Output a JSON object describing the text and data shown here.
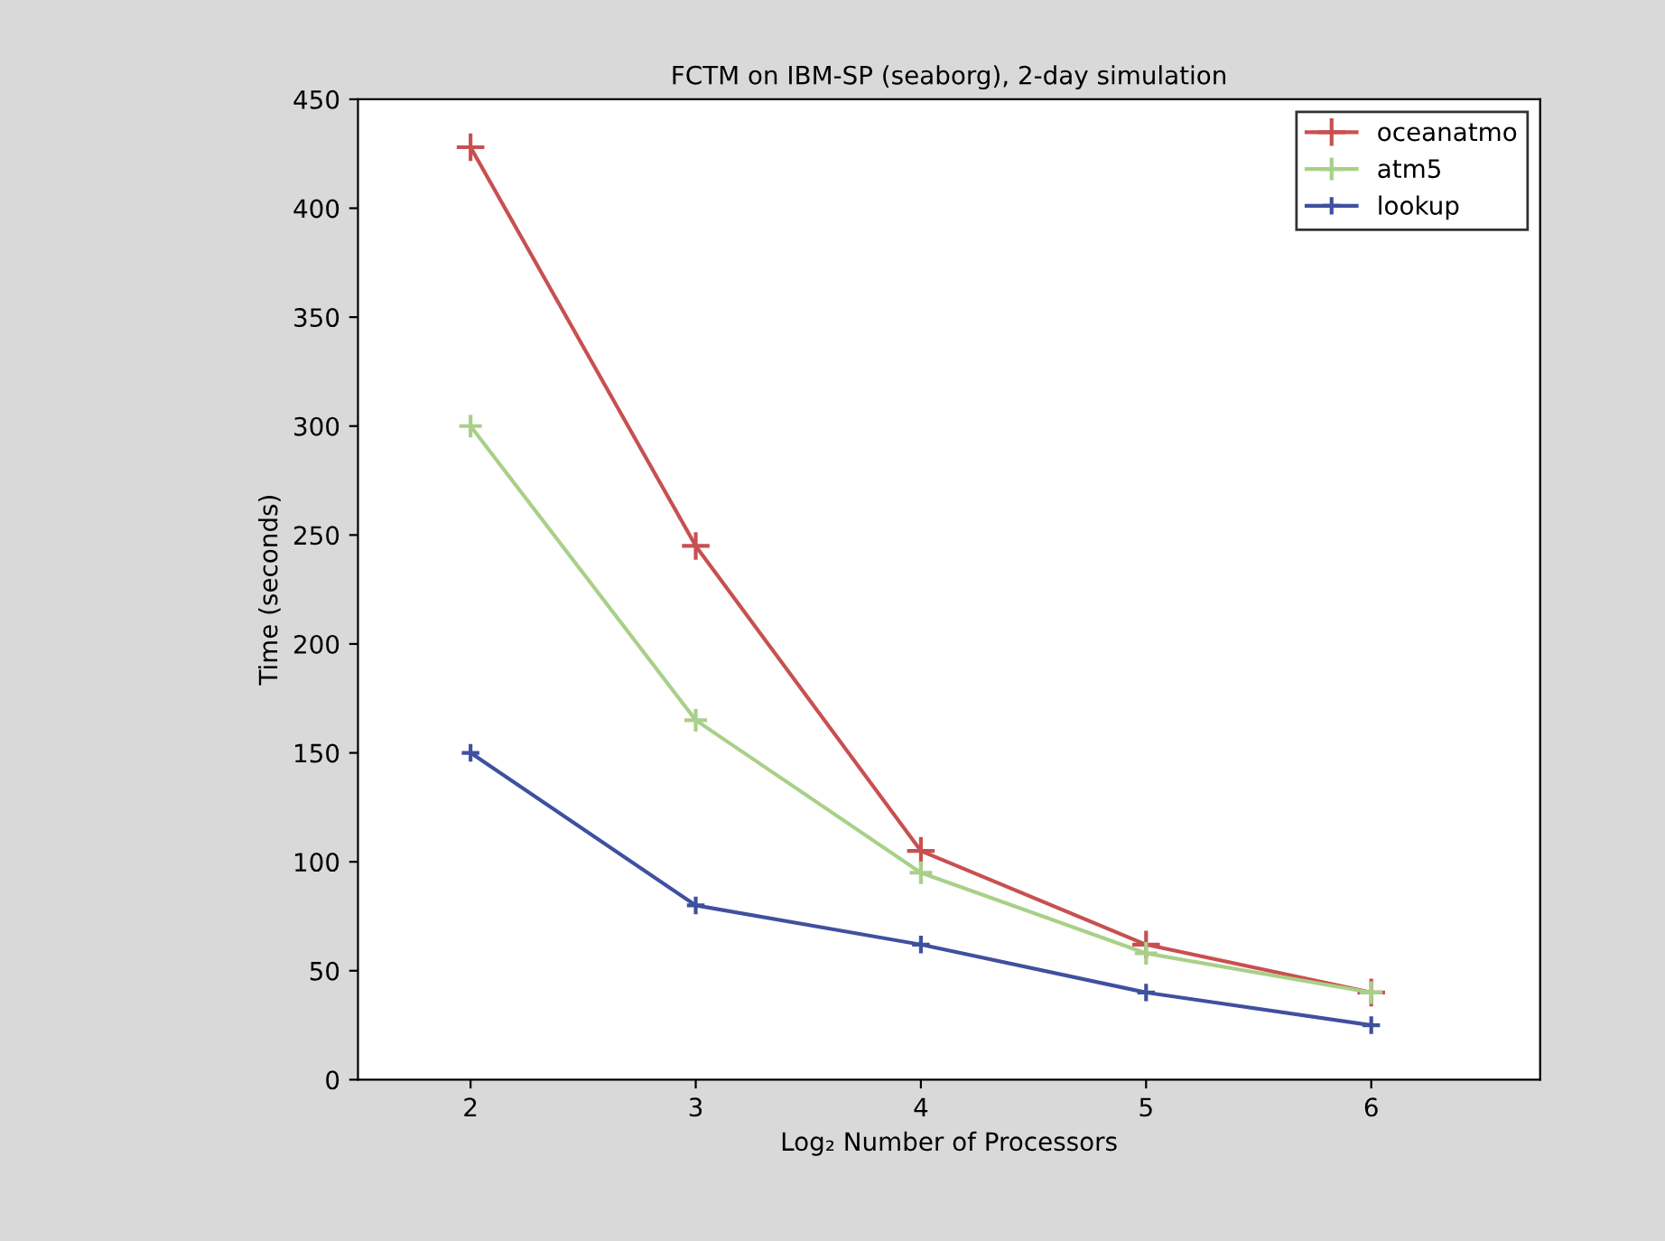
{
  "chart_data": {
    "type": "line",
    "title": "FCTM on IBM-SP (seaborg), 2-day simulation",
    "xlabel": "Log₂ Number of Processors",
    "ylabel": "Time (seconds)",
    "x": [
      2,
      3,
      4,
      5,
      6
    ],
    "series": [
      {
        "name": "oceanatmo",
        "color": "#c85050",
        "values": [
          428,
          245,
          105,
          62,
          40
        ]
      },
      {
        "name": "atm5",
        "color": "#a8d088",
        "values": [
          300,
          165,
          95,
          58,
          40
        ]
      },
      {
        "name": "lookup",
        "color": "#4050a0",
        "values": [
          150,
          80,
          62,
          40,
          25
        ]
      }
    ],
    "xlim": [
      1.5,
      6.75
    ],
    "xticks": [
      2,
      3,
      4,
      5,
      6
    ],
    "ylim": [
      0,
      450
    ],
    "yticks": [
      0,
      50,
      100,
      150,
      200,
      250,
      300,
      350,
      400,
      450
    ],
    "grid": false,
    "legend": "top right",
    "marker": "cross",
    "line_style": "solid"
  }
}
